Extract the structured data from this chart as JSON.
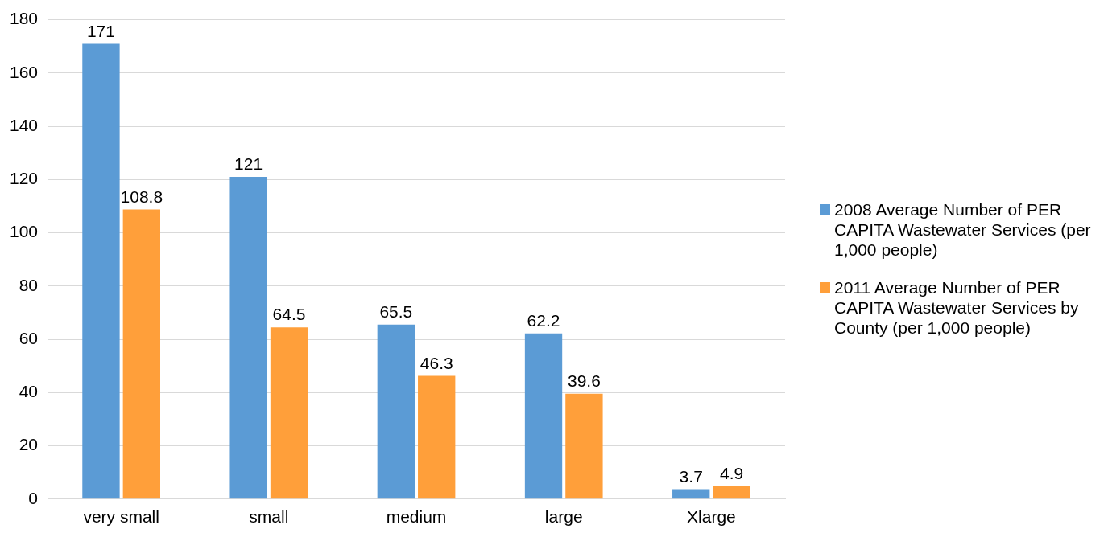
{
  "chart_data": {
    "type": "bar",
    "categories": [
      "very small",
      "small",
      "medium",
      "large",
      "Xlarge"
    ],
    "series": [
      {
        "name": "2008 Average Number of PER CAPITA Wastewater Services  (per 1,000 people)",
        "color": "#5b9bd5",
        "values": [
          171,
          121,
          65.5,
          62.2,
          3.7
        ]
      },
      {
        "name": "2011 Average Number of PER CAPITA  Wastewater Services by County (per 1,000 people)",
        "color": "#ff9f3a",
        "values": [
          108.8,
          64.5,
          46.3,
          39.6,
          4.9
        ]
      }
    ],
    "ylim": [
      0,
      180
    ],
    "yticks": [
      0,
      20,
      40,
      60,
      80,
      100,
      120,
      140,
      160,
      180
    ],
    "grid": "y",
    "legend": "right",
    "data_labels": true
  }
}
